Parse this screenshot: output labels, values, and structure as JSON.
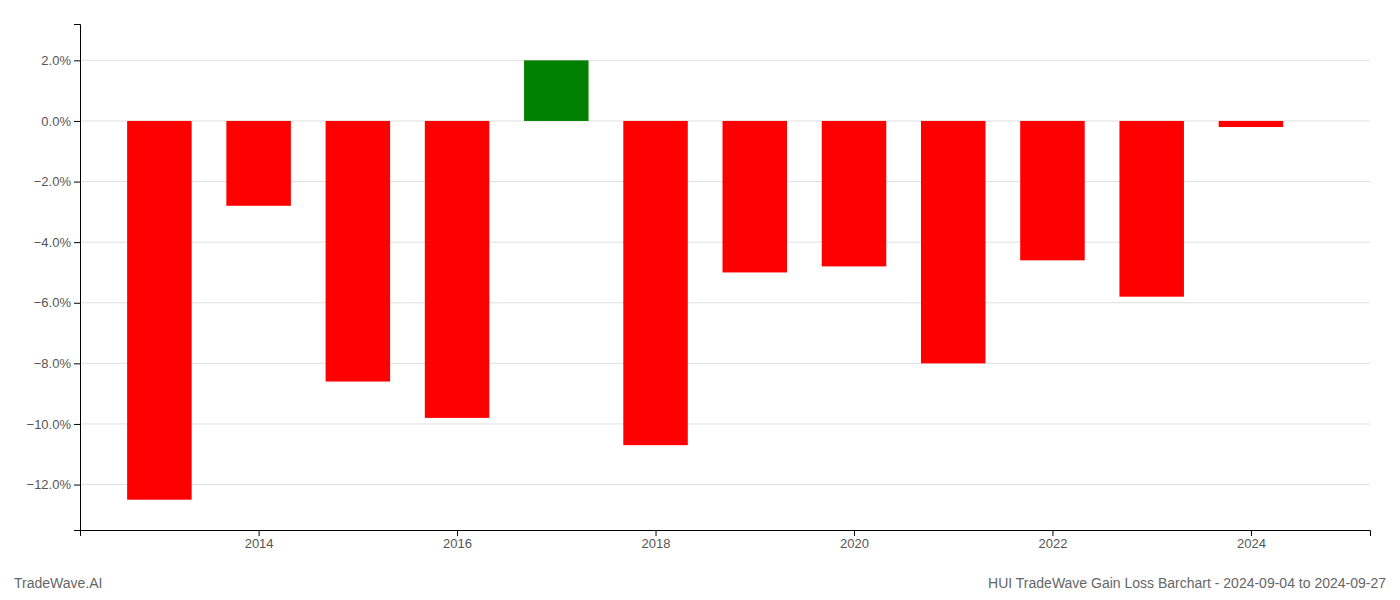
{
  "chart_data": {
    "type": "bar",
    "title": "HUI TradeWave Gain Loss Barchart - 2024-09-04 to 2024-09-27",
    "annotations": [
      "TradeWave.AI"
    ],
    "x": [
      2013,
      2014,
      2015,
      2016,
      2017,
      2018,
      2019,
      2020,
      2021,
      2022,
      2023,
      2024
    ],
    "values": [
      -12.5,
      -2.8,
      -8.6,
      -9.8,
      2.0,
      -10.7,
      -5.0,
      -4.8,
      -8.0,
      -4.6,
      -5.8,
      -0.2
    ],
    "colors": [
      "#ff0000",
      "#ff0000",
      "#ff0000",
      "#ff0000",
      "#008000",
      "#ff0000",
      "#ff0000",
      "#ff0000",
      "#ff0000",
      "#ff0000",
      "#ff0000",
      "#ff0000"
    ],
    "xlim": [
      2012.2,
      2025.2
    ],
    "xticks": [
      2014,
      2016,
      2018,
      2020,
      2022,
      2024
    ],
    "ylim": [
      -13.5,
      3.2
    ],
    "yticks": [
      {
        "value": 2.0,
        "label": "2.0%"
      },
      {
        "value": 0.0,
        "label": "0.0%"
      },
      {
        "value": -2.0,
        "label": "−2.0%"
      },
      {
        "value": -4.0,
        "label": "−4.0%"
      },
      {
        "value": -6.0,
        "label": "−6.0%"
      },
      {
        "value": -8.0,
        "label": "−8.0%"
      },
      {
        "value": -10.0,
        "label": "−10.0%"
      },
      {
        "value": -12.0,
        "label": "−12.0%"
      }
    ],
    "grid": true
  }
}
